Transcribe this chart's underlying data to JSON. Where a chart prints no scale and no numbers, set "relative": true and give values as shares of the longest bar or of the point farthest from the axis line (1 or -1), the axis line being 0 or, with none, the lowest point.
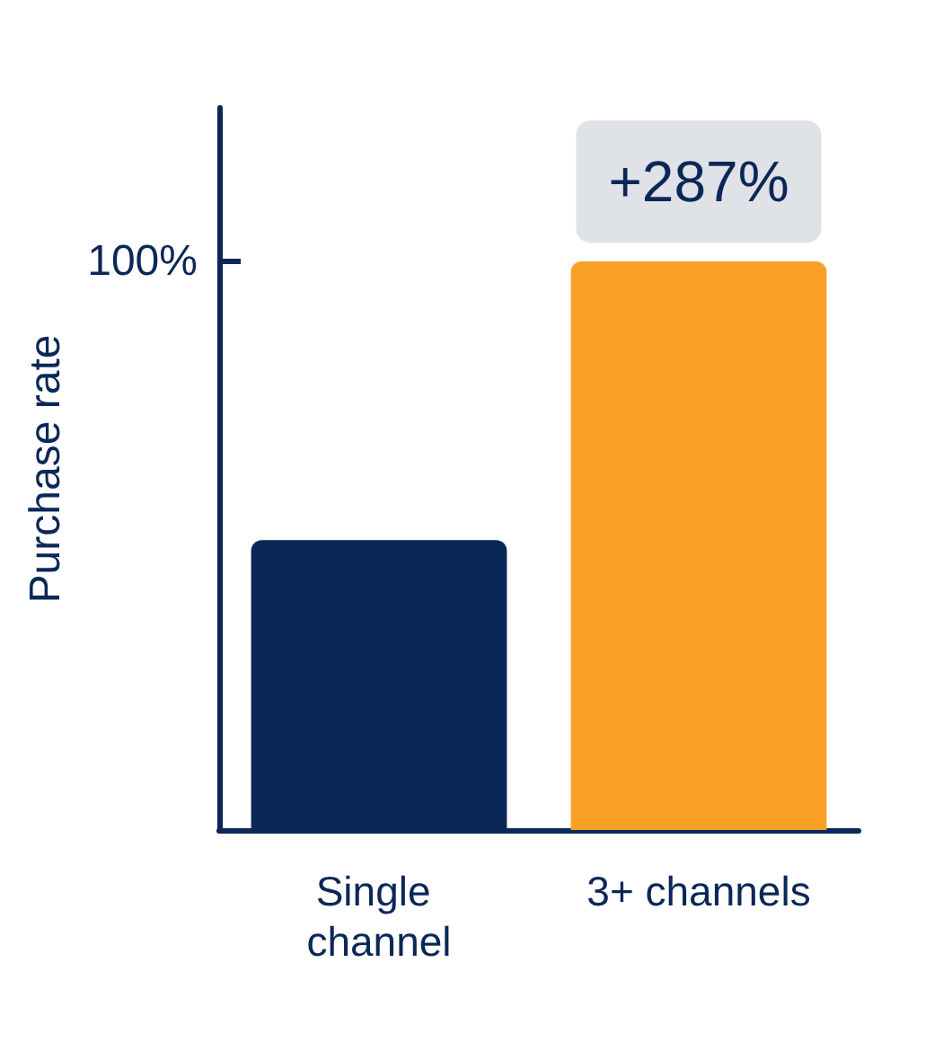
{
  "chart_data": {
    "type": "bar",
    "relative": true,
    "ylabel": "Purchase rate",
    "categories": [
      "Single channel",
      "3+ channels"
    ],
    "values": [
      0.51,
      1
    ],
    "colors": [
      "#0b2757",
      "#f7a025"
    ],
    "annotations": [
      "100%",
      "+287%"
    ],
    "grid": false
  }
}
